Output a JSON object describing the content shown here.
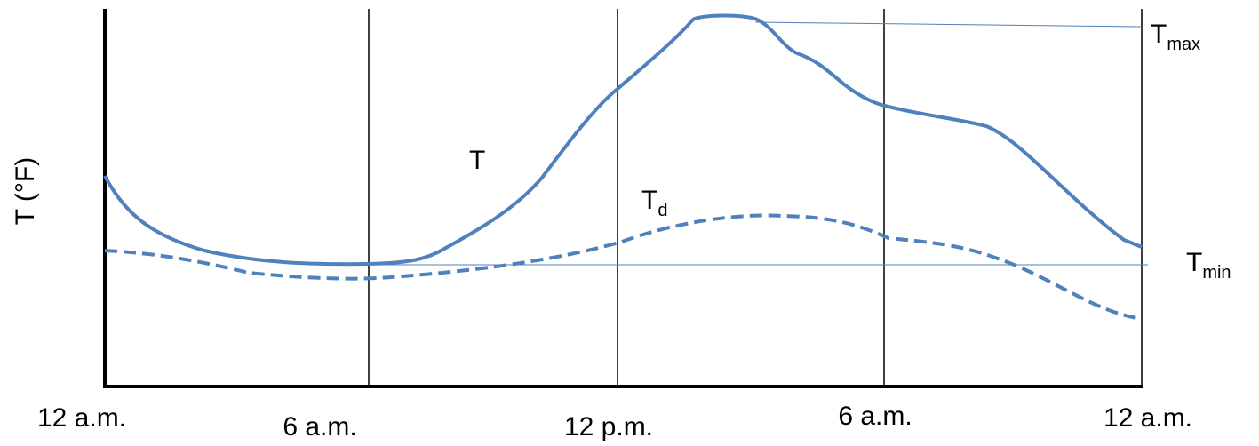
{
  "y_axis_label": "T (°F)",
  "curve_labels": [
    {
      "base": "T"
    },
    {
      "base": "T",
      "sub": "d"
    },
    {
      "base": "T",
      "sub": "max"
    },
    {
      "base": "T",
      "sub": "min"
    }
  ],
  "x_labels": [
    "12 a.m.",
    "6 a.m.",
    "12 p.m.",
    "6 a.m.",
    "12 a.m."
  ]
}
